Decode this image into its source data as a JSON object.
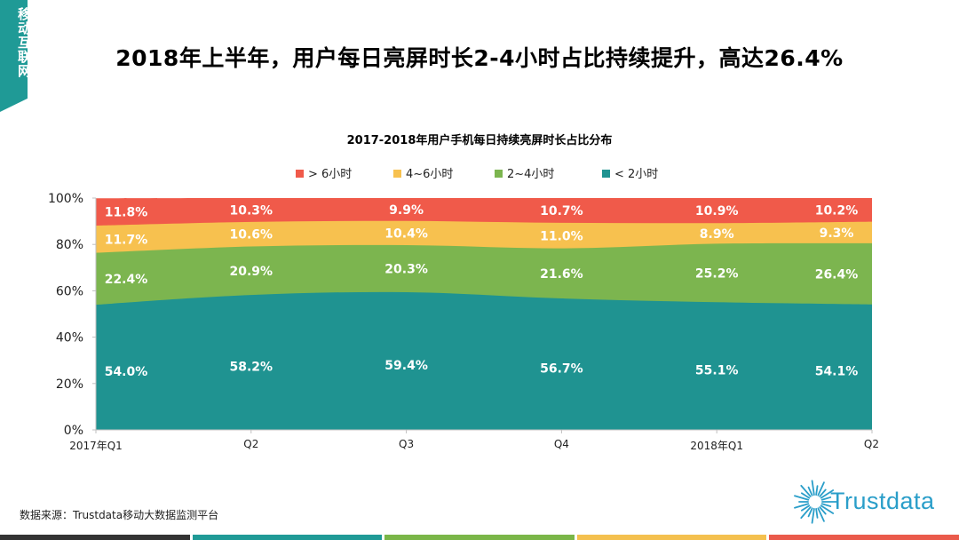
{
  "side_tab": {
    "label": "移动互联网",
    "color": "#1f9a96"
  },
  "page_title": "2018年上半年，用户每日亮屏时长2-4小时占比持续提升，高达26.4%",
  "source": "数据来源：Trustdata移动大数据监测平台",
  "logo": {
    "text": "Trustdata",
    "icon": "starburst-logo-icon",
    "color": "#2a9ec9"
  },
  "bottom_bar_colors": [
    "#333333",
    "#1f9a96",
    "#7ab648",
    "#f4c04e",
    "#ea5a4b"
  ],
  "chart_data": {
    "type": "area",
    "stacked": true,
    "title": "2017-2018年用户手机每日持续亮屏时长占比分布",
    "categories": [
      "2017年Q1",
      "Q2",
      "Q3",
      "Q4",
      "2018年Q1",
      "Q2"
    ],
    "ylim": [
      0,
      100
    ],
    "yticks": [
      "0%",
      "20%",
      "40%",
      "60%",
      "80%",
      "100%"
    ],
    "legend_position": "top",
    "series": [
      {
        "name": "< 2小时",
        "color": "#1f9391",
        "values": [
          54.0,
          58.2,
          59.4,
          56.7,
          55.1,
          54.1
        ],
        "labels": [
          "54.0%",
          "58.2%",
          "59.4%",
          "56.7%",
          "55.1%",
          "54.1%"
        ]
      },
      {
        "name": "2~4小时",
        "color": "#7cb54f",
        "values": [
          22.4,
          20.9,
          20.3,
          21.6,
          25.2,
          26.4
        ],
        "labels": [
          "22.4%",
          "20.9%",
          "20.3%",
          "21.6%",
          "25.2%",
          "26.4%"
        ]
      },
      {
        "name": "4~6小时",
        "color": "#f7c14f",
        "values": [
          11.7,
          10.6,
          10.4,
          11.0,
          8.9,
          9.3
        ],
        "labels": [
          "11.7%",
          "10.6%",
          "10.4%",
          "11.0%",
          "8.9%",
          "9.3%"
        ]
      },
      {
        "name": "> 6小时",
        "color": "#f05a4a",
        "values": [
          11.8,
          10.3,
          9.9,
          10.7,
          10.9,
          10.2
        ],
        "labels": [
          "11.8%",
          "10.3%",
          "9.9%",
          "10.7%",
          "10.9%",
          "10.2%"
        ]
      }
    ],
    "legend_order": [
      3,
      2,
      1,
      0
    ]
  }
}
